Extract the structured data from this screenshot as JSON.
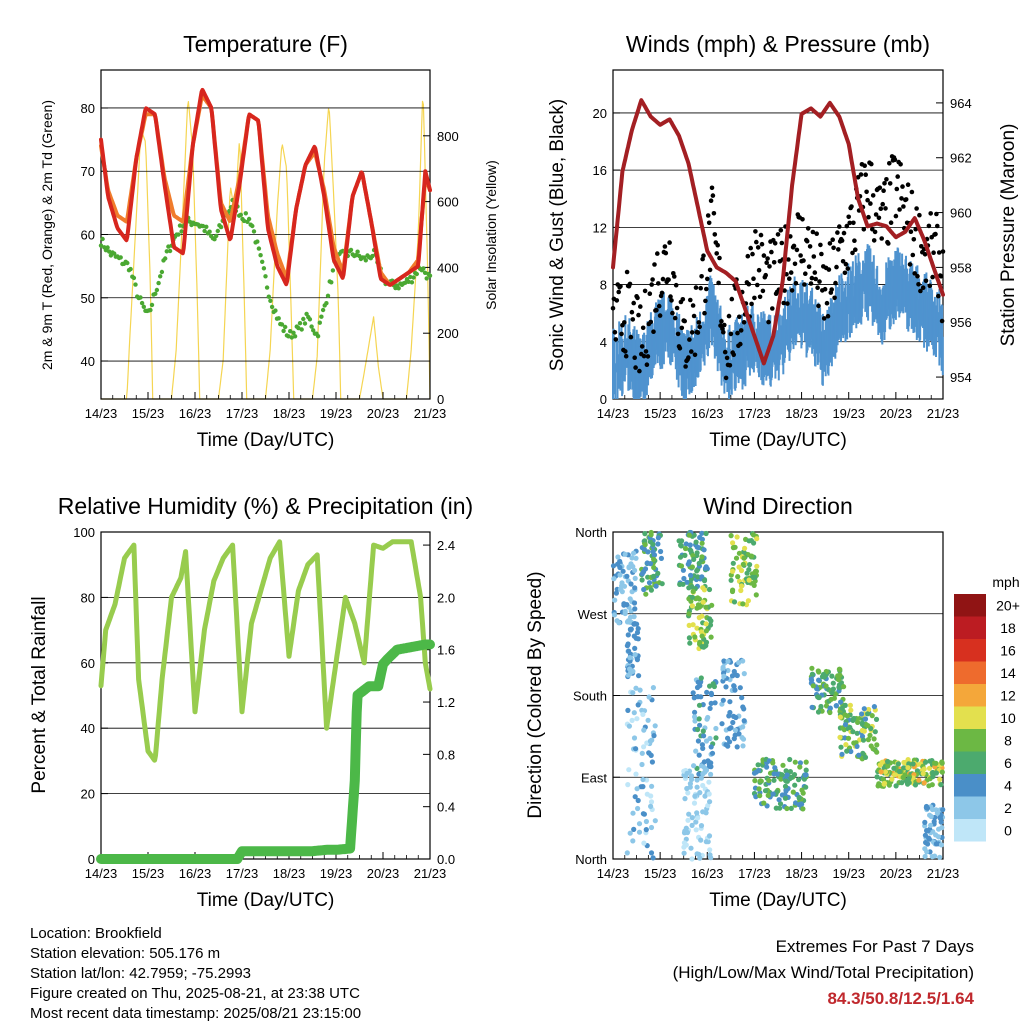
{
  "chart_data": [
    {
      "type": "line",
      "title": "Temperature (F)",
      "xlabel": "Time (Day/UTC)",
      "ylabel": "2m & 9m T (Red, Orange) & 2m Td (Green)",
      "y2label": "Solar Insolation (Yellow)",
      "ylim": [
        34,
        86
      ],
      "yticks": [
        40,
        50,
        60,
        70,
        80
      ],
      "y2lim": [
        0,
        1000
      ],
      "y2ticks": [
        0,
        200,
        400,
        600,
        800
      ],
      "x_ticks": [
        "14/23",
        "15/23",
        "16/23",
        "17/23",
        "18/23",
        "19/23",
        "20/23",
        "21/23"
      ],
      "series": [
        {
          "name": "2m T",
          "color": "#d7261e",
          "x": [
            0,
            0.15,
            0.35,
            0.55,
            0.75,
            0.95,
            1.15,
            1.35,
            1.55,
            1.75,
            1.95,
            2.15,
            2.35,
            2.55,
            2.75,
            2.95,
            3.15,
            3.35,
            3.55,
            3.75,
            3.95,
            4.15,
            4.35,
            4.55,
            4.75,
            4.95,
            5.15,
            5.35,
            5.55,
            5.75,
            5.95,
            6.15,
            6.35,
            6.55,
            6.75,
            6.9,
            7.0
          ],
          "values": [
            75,
            66,
            61,
            59,
            72,
            80,
            79,
            68,
            58,
            57,
            74,
            83,
            80,
            64,
            59,
            68,
            79,
            78,
            61,
            55,
            52,
            64,
            71,
            74,
            66,
            56,
            53,
            66,
            70,
            62,
            53,
            52,
            53,
            54,
            55,
            70,
            67
          ]
        },
        {
          "name": "9m T",
          "color": "#f07c2c",
          "x": [
            0,
            0.15,
            0.35,
            0.55,
            0.75,
            0.95,
            1.15,
            1.35,
            1.55,
            1.75,
            1.95,
            2.15,
            2.35,
            2.55,
            2.75,
            2.95,
            3.15,
            3.35,
            3.55,
            3.75,
            3.95,
            4.15,
            4.35,
            4.55,
            4.75,
            4.95,
            5.15,
            5.35,
            5.55,
            5.75,
            5.95,
            6.15,
            6.35,
            6.55,
            6.75,
            6.9,
            7.0
          ],
          "values": [
            74,
            67,
            63,
            62,
            72,
            79,
            79,
            69,
            63,
            62,
            74,
            82,
            80,
            65,
            62,
            69,
            79,
            78,
            63,
            57,
            53,
            64,
            71,
            73,
            67,
            58,
            54,
            66,
            70,
            62,
            54,
            52,
            53,
            54,
            56,
            69,
            67
          ]
        },
        {
          "name": "2m Td",
          "color": "#4aa832",
          "x": [
            0,
            0.2,
            0.4,
            0.6,
            0.8,
            1.0,
            1.2,
            1.4,
            1.6,
            1.8,
            2.0,
            2.2,
            2.4,
            2.6,
            2.8,
            3.0,
            3.2,
            3.4,
            3.6,
            3.8,
            4.0,
            4.2,
            4.4,
            4.6,
            4.8,
            5.0,
            5.2,
            5.4,
            5.6,
            5.8,
            6.0,
            6.2,
            6.4,
            6.6,
            6.8,
            7.0
          ],
          "values": [
            59,
            57,
            56,
            55,
            50,
            47,
            52,
            57,
            60,
            62,
            62,
            61,
            59,
            62,
            65,
            63,
            62,
            56,
            50,
            46,
            44,
            45,
            47,
            44,
            50,
            56,
            57,
            57,
            56,
            57,
            53,
            52,
            52,
            53,
            55,
            53
          ]
        },
        {
          "name": "Solar Insolation",
          "color": "#f5d552",
          "axis": "y2",
          "x": [
            0,
            0.55,
            0.6,
            0.75,
            0.85,
            0.95,
            1.05,
            1.1,
            1.3,
            1.5,
            1.6,
            1.75,
            1.85,
            1.95,
            2.05,
            2.1,
            2.3,
            2.5,
            2.6,
            2.75,
            2.85,
            2.95,
            3.05,
            3.1,
            3.3,
            3.5,
            3.6,
            3.75,
            3.85,
            3.95,
            4.05,
            4.1,
            4.3,
            4.5,
            4.6,
            4.75,
            4.85,
            4.95,
            5.05,
            5.1,
            5.3,
            5.5,
            5.6,
            5.8,
            5.9,
            6.0,
            6.1,
            6.3,
            6.5,
            6.6,
            6.75,
            6.85,
            6.95,
            7.0
          ],
          "values": [
            0,
            0,
            150,
            550,
            820,
            780,
            350,
            0,
            0,
            0,
            150,
            600,
            920,
            760,
            300,
            0,
            0,
            0,
            120,
            650,
            560,
            800,
            300,
            0,
            0,
            0,
            150,
            580,
            780,
            700,
            250,
            0,
            0,
            0,
            130,
            720,
            900,
            620,
            300,
            0,
            0,
            0,
            80,
            250,
            100,
            0,
            0,
            0,
            0,
            150,
            500,
            950,
            400,
            0
          ]
        }
      ]
    },
    {
      "type": "line",
      "title": "Winds (mph) & Pressure (mb)",
      "xlabel": "Time (Day/UTC)",
      "ylabel": "Sonic Wind & Gust (Blue, Black)",
      "y2label": "Station Pressure (Maroon)",
      "ylim": [
        0,
        23
      ],
      "yticks": [
        0,
        4,
        8,
        12,
        16,
        20
      ],
      "y2lim": [
        953.2,
        965.2
      ],
      "y2ticks": [
        954,
        956,
        958,
        960,
        962,
        964
      ],
      "x_ticks": [
        "14/23",
        "15/23",
        "16/23",
        "17/23",
        "18/23",
        "19/23",
        "20/23",
        "21/23"
      ],
      "series": [
        {
          "name": "Sonic Wind",
          "color": "#4f93cf",
          "x": [
            0,
            0.3,
            0.6,
            0.9,
            1.2,
            1.5,
            1.8,
            2.1,
            2.4,
            2.7,
            3.0,
            3.3,
            3.6,
            3.9,
            4.2,
            4.5,
            4.8,
            5.1,
            5.4,
            5.7,
            6.0,
            6.3,
            6.6,
            6.9,
            7.0
          ],
          "values": [
            2,
            3,
            1.5,
            4,
            5,
            2,
            3,
            6,
            2,
            3,
            4,
            3,
            4,
            6,
            5,
            3,
            6,
            7,
            8,
            6,
            8,
            7,
            6,
            5,
            4
          ]
        },
        {
          "name": "Gust",
          "color": "#000000",
          "x": [
            0,
            0.3,
            0.6,
            0.9,
            1.2,
            1.5,
            1.8,
            2.1,
            2.4,
            2.7,
            3.0,
            3.3,
            3.6,
            3.9,
            4.2,
            4.5,
            4.8,
            5.1,
            5.4,
            5.7,
            6.0,
            6.3,
            6.6,
            6.9,
            7.0
          ],
          "values": [
            5,
            6,
            3.5,
            8,
            10,
            4,
            6,
            12,
            4,
            6,
            10,
            8,
            9,
            11,
            10,
            7,
            10,
            12,
            15,
            12,
            15,
            12,
            10,
            10,
            8
          ]
        },
        {
          "name": "Station Pressure",
          "color": "#a31f23",
          "axis": "y2",
          "x": [
            0,
            0.2,
            0.4,
            0.6,
            0.8,
            1.0,
            1.2,
            1.4,
            1.6,
            1.8,
            2.0,
            2.2,
            2.4,
            2.6,
            2.8,
            3.0,
            3.2,
            3.4,
            3.6,
            3.8,
            4.0,
            4.2,
            4.4,
            4.6,
            4.8,
            5.0,
            5.2,
            5.4,
            5.6,
            5.8,
            6.0,
            6.2,
            6.4,
            6.6,
            6.8,
            7.0
          ],
          "values": [
            958,
            961.5,
            963,
            964.1,
            963.5,
            963.2,
            963.4,
            962.8,
            961.8,
            960.2,
            958.6,
            958,
            957.8,
            957.5,
            956.5,
            955.5,
            954.5,
            955.5,
            957.5,
            961,
            963.6,
            963.8,
            963.5,
            964,
            963.5,
            962.5,
            960.5,
            959.5,
            959.6,
            959.5,
            959.1,
            959.3,
            959.8,
            959,
            958,
            957
          ]
        }
      ]
    },
    {
      "type": "line",
      "title": "Relative Humidity (%) & Precipitation (in)",
      "xlabel": "Time (Day/UTC)",
      "ylabel": "Percent & Total Rainfall",
      "ylim": [
        0,
        100
      ],
      "yticks": [
        0,
        20,
        40,
        60,
        80,
        100
      ],
      "y2lim": [
        0,
        2.5
      ],
      "y2ticks": [
        0.0,
        0.4,
        0.8,
        1.2,
        1.6,
        2.0,
        2.4
      ],
      "x_ticks": [
        "14/23",
        "15/23",
        "16/23",
        "17/23",
        "18/23",
        "19/23",
        "20/23",
        "21/23"
      ],
      "series": [
        {
          "name": "Relative Humidity",
          "color": "#98cc4e",
          "x": [
            0,
            0.1,
            0.3,
            0.5,
            0.7,
            0.8,
            1.0,
            1.15,
            1.3,
            1.5,
            1.7,
            1.8,
            2.0,
            2.2,
            2.4,
            2.6,
            2.8,
            3.0,
            3.2,
            3.4,
            3.6,
            3.8,
            4.0,
            4.2,
            4.4,
            4.6,
            4.8,
            5.0,
            5.2,
            5.4,
            5.6,
            5.8,
            6.0,
            6.2,
            6.4,
            6.6,
            6.8,
            6.9,
            7.0
          ],
          "values": [
            53,
            70,
            78,
            92,
            96,
            55,
            33,
            30,
            55,
            80,
            86,
            94,
            45,
            70,
            85,
            92,
            96,
            45,
            72,
            82,
            92,
            97,
            62,
            82,
            90,
            93,
            40,
            60,
            80,
            72,
            60,
            96,
            95,
            97,
            97,
            97,
            80,
            60,
            52
          ]
        },
        {
          "name": "Total Precipitation",
          "color": "#4cb848",
          "axis": "y2",
          "x": [
            0,
            0.5,
            1.0,
            1.5,
            2.0,
            2.5,
            2.9,
            3.0,
            3.5,
            4.0,
            4.5,
            4.8,
            5.0,
            5.3,
            5.4,
            5.45,
            5.7,
            5.9,
            6.0,
            6.1,
            6.3,
            6.6,
            6.9,
            7.0
          ],
          "values": [
            0,
            0,
            0,
            0,
            0,
            0,
            0,
            0.06,
            0.06,
            0.06,
            0.06,
            0.07,
            0.07,
            0.08,
            0.6,
            1.25,
            1.32,
            1.32,
            1.49,
            1.53,
            1.6,
            1.62,
            1.64,
            1.64
          ]
        }
      ]
    },
    {
      "type": "scatter",
      "title": "Wind Direction",
      "xlabel": "Time (Day/UTC)",
      "ylabel": "Direction (Colored By Speed)",
      "ylim": [
        0,
        360
      ],
      "y_tick_labels": [
        "North",
        "East",
        "South",
        "West",
        "North"
      ],
      "x_ticks": [
        "14/23",
        "15/23",
        "16/23",
        "17/23",
        "18/23",
        "19/23",
        "20/23",
        "21/23"
      ],
      "legend_title": "mph",
      "legend_labels": [
        "0",
        "2",
        "4",
        "6",
        "8",
        "10",
        "12",
        "14",
        "16",
        "18",
        "20+"
      ],
      "legend_colors": [
        "#bfe6f8",
        "#8dc7e8",
        "#4a8fc8",
        "#4caa6e",
        "#6cb844",
        "#e3e04e",
        "#f4a73a",
        "#ee6b2d",
        "#d7301f",
        "#bc1c22",
        "#901414"
      ],
      "clusters": [
        {
          "x": [
            0.0,
            0.5
          ],
          "dir": [
            260,
            340
          ],
          "speed": [
            1,
            4
          ]
        },
        {
          "x": [
            0.3,
            0.55
          ],
          "dir": [
            200,
            260
          ],
          "speed": [
            2,
            5
          ]
        },
        {
          "x": [
            0.6,
            1.05
          ],
          "dir": [
            290,
            360
          ],
          "speed": [
            3,
            9
          ]
        },
        {
          "x": [
            0.3,
            0.9
          ],
          "dir": [
            0,
            190
          ],
          "speed": [
            0,
            4
          ]
        },
        {
          "x": [
            1.4,
            2.0
          ],
          "dir": [
            300,
            360
          ],
          "speed": [
            3,
            8
          ]
        },
        {
          "x": [
            1.6,
            2.1
          ],
          "dir": [
            230,
            300
          ],
          "speed": [
            5,
            11
          ]
        },
        {
          "x": [
            1.7,
            2.2
          ],
          "dir": [
            90,
            200
          ],
          "speed": [
            2,
            6
          ]
        },
        {
          "x": [
            1.5,
            2.1
          ],
          "dir": [
            0,
            100
          ],
          "speed": [
            0,
            3
          ]
        },
        {
          "x": [
            2.5,
            3.05
          ],
          "dir": [
            280,
            360
          ],
          "speed": [
            5,
            10
          ]
        },
        {
          "x": [
            2.3,
            2.8
          ],
          "dir": [
            120,
            220
          ],
          "speed": [
            2,
            5
          ]
        },
        {
          "x": [
            3.0,
            4.1
          ],
          "dir": [
            55,
            110
          ],
          "speed": [
            3,
            9
          ]
        },
        {
          "x": [
            4.2,
            4.9
          ],
          "dir": [
            160,
            210
          ],
          "speed": [
            4,
            9
          ]
        },
        {
          "x": [
            4.8,
            5.6
          ],
          "dir": [
            110,
            170
          ],
          "speed": [
            4,
            10
          ]
        },
        {
          "x": [
            5.6,
            7.0
          ],
          "dir": [
            80,
            110
          ],
          "speed": [
            5,
            12
          ]
        },
        {
          "x": [
            6.6,
            7.0
          ],
          "dir": [
            0,
            60
          ],
          "speed": [
            2,
            4
          ]
        }
      ]
    }
  ],
  "footer": {
    "location": "Location: Brookfield",
    "elevation": "Station elevation: 505.176 m",
    "latlon": "Station lat/lon: 42.7959; -75.2993",
    "created": "Figure created on Thu, 2025-08-21, at 23:38 UTC",
    "timestamp": "Most recent data timestamp: 2025/08/21 23:15:00",
    "extremes_title": "Extremes For Past 7 Days",
    "extremes_subtitle": "(High/Low/Max Wind/Total Precipitation)",
    "extremes_values": "84.3/50.8/12.5/1.64"
  }
}
